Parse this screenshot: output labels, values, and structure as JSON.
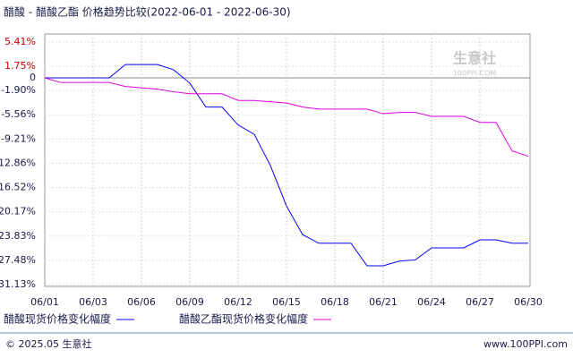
{
  "chart_data": {
    "type": "line",
    "title": "醋酸 - 醋酸乙酯 价格趋势比较(2022-06-01 - 2022-06-30)",
    "watermark": "生意社",
    "watermark_sub": "100PPI.COM",
    "categories": [
      "06/01",
      null,
      null,
      "06/03",
      null,
      null,
      "06/06",
      null,
      null,
      "06/09",
      null,
      null,
      "06/12",
      null,
      null,
      "06/15",
      null,
      null,
      "06/18",
      null,
      null,
      "06/21",
      null,
      null,
      "06/24",
      null,
      null,
      "06/27",
      null,
      null,
      "06/30"
    ],
    "series": [
      {
        "name": "醋酸现货价格变化幅度",
        "color": "#0000ff",
        "values": [
          0,
          0,
          0,
          0,
          0,
          2.0,
          2.0,
          2.0,
          1.2,
          -0.8,
          -4.4,
          -4.4,
          -7.1,
          -8.5,
          -13.2,
          -19.3,
          -23.6,
          -24.9,
          -24.9,
          -24.9,
          -28.3,
          -28.3,
          -27.6,
          -27.4,
          -25.6,
          -25.6,
          -25.6,
          -24.4,
          -24.4,
          -24.9,
          -24.9
        ]
      },
      {
        "name": "醋酸乙酯现货价格变化幅度",
        "color": "#e000e0",
        "values": [
          0,
          -0.7,
          -0.7,
          -0.7,
          -0.7,
          -1.3,
          -1.5,
          -1.7,
          -2.1,
          -2.4,
          -2.4,
          -2.4,
          -3.4,
          -3.4,
          -3.6,
          -3.8,
          -4.4,
          -4.7,
          -4.7,
          -4.7,
          -4.7,
          -5.4,
          -5.2,
          -5.2,
          -5.8,
          -5.8,
          -5.8,
          -6.7,
          -6.7,
          -11.0,
          -11.8
        ]
      }
    ],
    "ylim": [
      -31.4,
      6.6
    ],
    "yticks": [
      {
        "value": 5.41,
        "label": "5.41%"
      },
      {
        "value": 1.75,
        "label": "1.75%"
      },
      0,
      {
        "value": -1.9,
        "label": "-1.90%"
      },
      {
        "value": -5.56,
        "label": "-5.56%"
      },
      {
        "value": -9.21,
        "label": "-9.21%"
      },
      {
        "value": -12.86,
        "label": "-12.86%"
      },
      {
        "value": -16.52,
        "label": "-16.52%"
      },
      {
        "value": -20.17,
        "label": "-20.17%"
      },
      {
        "value": -23.83,
        "label": "-23.83%"
      },
      {
        "value": -27.48,
        "label": "-27.48%"
      },
      {
        "value": -31.13,
        "label": "-31.13%"
      }
    ],
    "grid": true,
    "positive_tick_color": "#cc0000",
    "footer_left": "© 2025.05 生意社",
    "footer_right": "www.100PPI.com"
  }
}
